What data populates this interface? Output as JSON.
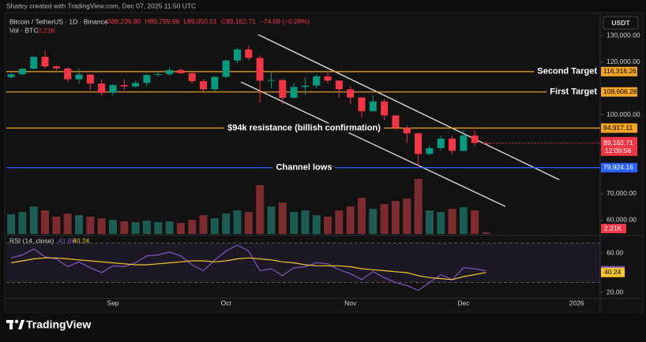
{
  "header": {
    "credit": "Shattry created with TradingView.com, Dec 07, 2025 11:50 UTC"
  },
  "chart_data": {
    "type": "candlestick",
    "symbol": "Bitcoin / TetherUS · 1D · Binance",
    "ohlc_legend": [
      "O89,236.80",
      "H89,799.96",
      "L89,050.01",
      "C89,162.71",
      "−74.08 (−0.08%)"
    ],
    "currency": "USDT",
    "up_color": "#089981",
    "down_color": "#f23645",
    "categories": [
      null,
      null,
      null,
      null,
      null,
      null,
      null,
      null,
      null,
      "Sep",
      null,
      null,
      null,
      null,
      null,
      null,
      null,
      null,
      null,
      "Oct",
      null,
      null,
      null,
      null,
      null,
      null,
      null,
      null,
      null,
      null,
      "Nov",
      null,
      null,
      null,
      null,
      null,
      null,
      null,
      null,
      null,
      "Dec",
      null,
      null,
      null,
      null,
      null,
      null,
      null,
      null,
      null,
      "2026"
    ],
    "open": [
      114200,
      115300,
      117400,
      121900,
      118300,
      117500,
      113400,
      115200,
      111800,
      108300,
      111200,
      110700,
      112000,
      115000,
      115300,
      116900,
      115700,
      112700,
      109600,
      114300,
      120500,
      124700,
      121500,
      112900,
      113100,
      106400,
      110500,
      111000,
      114500,
      112900,
      109600,
      106500,
      101300,
      105000,
      99700,
      95000,
      92900,
      85100,
      87300,
      90900,
      86300,
      92100,
      89236.8,
      null,
      null,
      null,
      null,
      null,
      null,
      null,
      null
    ],
    "high": [
      115800,
      117600,
      122300,
      124200,
      118600,
      117900,
      117400,
      115300,
      113400,
      111600,
      113400,
      112900,
      115200,
      116500,
      117900,
      117500,
      115800,
      113500,
      114800,
      120800,
      125500,
      126200,
      122500,
      115900,
      113600,
      111800,
      114000,
      115300,
      116400,
      112900,
      110800,
      106600,
      107300,
      106000,
      99800,
      96000,
      93200,
      88300,
      92000,
      91900,
      94200,
      94000,
      89799.96,
      null,
      null,
      null,
      null,
      null,
      null,
      null,
      null
    ],
    "low": [
      113500,
      114800,
      117000,
      117500,
      116800,
      112400,
      111700,
      109300,
      107300,
      107300,
      109300,
      110300,
      110800,
      114500,
      114800,
      115400,
      111900,
      108600,
      109000,
      113800,
      119400,
      120600,
      104600,
      110000,
      104000,
      106200,
      107500,
      110000,
      111800,
      106300,
      103900,
      98900,
      101200,
      98000,
      94100,
      89300,
      80600,
      84700,
      86500,
      85000,
      86100,
      88100,
      89050.01,
      null,
      null,
      null,
      null,
      null,
      null,
      null,
      null
    ],
    "close": [
      115300,
      117400,
      121900,
      118300,
      117500,
      113400,
      115200,
      111800,
      108300,
      111200,
      110700,
      112000,
      115000,
      115300,
      116900,
      115700,
      112700,
      109600,
      114300,
      120500,
      124700,
      121500,
      112900,
      113100,
      106400,
      110500,
      111000,
      114500,
      112900,
      109600,
      106500,
      101300,
      105000,
      99700,
      95000,
      92900,
      85100,
      87300,
      90900,
      86300,
      92100,
      89300,
      89162.71,
      null,
      null,
      null,
      null,
      null,
      null,
      null,
      null
    ],
    "ylim": [
      54776,
      138060
    ],
    "yticks": [
      {
        "value": 60000,
        "label": "60,000.00"
      },
      {
        "value": 70000,
        "label": "70,000.00"
      },
      {
        "value": 100000,
        "label": "100,000.00"
      },
      {
        "value": 120000,
        "label": "120,000.00"
      },
      {
        "value": 130000,
        "label": "130,000.00"
      }
    ],
    "levels": [
      {
        "label": "Second Target",
        "value": 116316.26,
        "value_label": "116,316.26",
        "color": "#f5a623"
      },
      {
        "label": "First Target",
        "value": 108606.28,
        "value_label": "108,606.28",
        "color": "#f5a623"
      },
      {
        "label": "$94k resistance (billish confirmation)",
        "value": 94917.11,
        "value_label": "94,917.11",
        "color": "#f5a623"
      },
      {
        "label": "Channel lows",
        "value": 79924.16,
        "value_label": "79,924.16",
        "color": "#2962ff"
      }
    ],
    "current": {
      "value": 89162.71,
      "label": "89,162.71",
      "countdown": "12:09:58",
      "color": "#f23645"
    },
    "volume": {
      "title": "Vol · BTC",
      "value_label": "2.21K",
      "up_color": "#1d5c53",
      "down_color": "#7c2b2f",
      "values": [
        25000,
        28000,
        35000,
        30000,
        22000,
        26000,
        24000,
        22000,
        20000,
        18000,
        16000,
        15000,
        17000,
        15000,
        16000,
        14000,
        18000,
        24000,
        20000,
        26000,
        30000,
        28000,
        62000,
        35000,
        40000,
        28000,
        30000,
        24000,
        22000,
        30000,
        35000,
        46000,
        32000,
        38000,
        42000,
        45000,
        70000,
        30000,
        28000,
        32000,
        34000,
        30000,
        2210,
        null,
        null,
        null,
        null,
        null,
        null,
        null,
        null
      ]
    },
    "rsi": {
      "title": "RSI (14, close)",
      "color": "#7e57c2",
      "ma_color": "#f7c52b",
      "values": [
        55,
        58,
        64,
        56,
        54,
        46,
        51,
        45,
        40,
        47,
        46,
        50,
        57,
        58,
        61,
        57,
        48,
        42,
        53,
        62,
        68,
        62,
        42,
        44,
        37,
        45,
        46,
        50,
        49,
        43,
        39,
        33,
        41,
        35,
        30,
        27,
        22,
        30,
        38,
        33,
        45,
        44,
        41.86,
        null,
        null,
        null,
        null,
        null,
        null,
        null,
        null
      ],
      "ma": [
        50,
        52,
        54,
        55,
        55,
        54,
        53,
        52,
        51,
        50,
        49,
        48,
        48,
        49,
        50,
        51,
        52,
        52,
        51,
        52,
        54,
        55,
        54,
        53,
        51,
        50,
        48,
        47,
        47,
        47,
        46,
        44,
        43,
        42,
        41,
        40,
        37,
        35,
        34,
        33,
        36,
        38,
        40.24,
        null,
        null,
        null,
        null,
        null,
        null,
        null,
        null
      ],
      "ylim": [
        14.4,
        76.8
      ],
      "yticks": [
        {
          "value": 60,
          "label": "60.00"
        },
        {
          "value": 20,
          "label": "20.00"
        }
      ],
      "bands": [
        30,
        70
      ]
    }
  },
  "footer": {
    "brand": "TradingView"
  }
}
